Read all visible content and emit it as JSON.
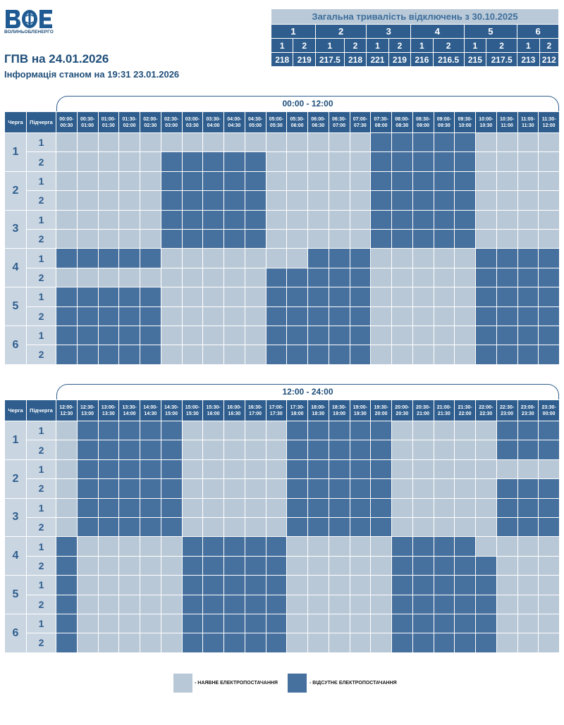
{
  "logo": {
    "mark_text": "ВОЕ",
    "brand": "ВОЛИНЬОБЛЕНЕРГО"
  },
  "title": "ГПВ на 24.01.2026",
  "subtitle": "Інформація станом на 19:31 23.01.2026",
  "summary": {
    "heading": "Загальна тривалість відключень з 30.10.2025",
    "queues": [
      "1",
      "2",
      "3",
      "4",
      "5",
      "6"
    ],
    "subqueues": [
      "1",
      "2",
      "1",
      "2",
      "1",
      "2",
      "1",
      "2",
      "1",
      "2",
      "1",
      "2"
    ],
    "values": [
      "218",
      "219",
      "217.5",
      "218",
      "221",
      "219",
      "216",
      "216.5",
      "215",
      "217.5",
      "213",
      "212"
    ]
  },
  "header_labels": {
    "queue": "Черга",
    "subqueue": "Підчерга"
  },
  "queue_labels": [
    "1",
    "2",
    "3",
    "4",
    "5",
    "6"
  ],
  "subqueue_labels": [
    "1",
    "2"
  ],
  "blocks": [
    {
      "title": "00:00 - 12:00",
      "slots": [
        [
          "00:00-",
          "00:30"
        ],
        [
          "00:30-",
          "01:00"
        ],
        [
          "01:00-",
          "01:30"
        ],
        [
          "01:30-",
          "02:00"
        ],
        [
          "02:00-",
          "02:30"
        ],
        [
          "02:30-",
          "03:00"
        ],
        [
          "03:00-",
          "03:30"
        ],
        [
          "03:30-",
          "04:00"
        ],
        [
          "04:00-",
          "04:30"
        ],
        [
          "04:30-",
          "05:00"
        ],
        [
          "05:00-",
          "05:30"
        ],
        [
          "05:30-",
          "06:00"
        ],
        [
          "06:00-",
          "06:30"
        ],
        [
          "06:30-",
          "07:00"
        ],
        [
          "07:00-",
          "07:30"
        ],
        [
          "07:30-",
          "08:00"
        ],
        [
          "08:00-",
          "08:30"
        ],
        [
          "08:30-",
          "09:00"
        ],
        [
          "09:00-",
          "09:30"
        ],
        [
          "09:30-",
          "10:00"
        ],
        [
          "10:00-",
          "10:30"
        ],
        [
          "10:30-",
          "11:00"
        ],
        [
          "11:00-",
          "11:30"
        ],
        [
          "11:30-",
          "12:00"
        ]
      ],
      "rows": [
        "000000000000000111110000",
        "000001111100000111110000",
        "000001111100000111110000",
        "000001111100000111110000",
        "000001111100000111110000",
        "000001111100000111110000",
        "111110000000111000001111",
        "000000000011111000001111",
        "111110000011111000001111",
        "111110000011111000001111",
        "111110000011111000001111",
        "111110000011111000001111"
      ]
    },
    {
      "title": "12:00 - 24:00",
      "slots": [
        [
          "12:00-",
          "12:30"
        ],
        [
          "12:30-",
          "13:00"
        ],
        [
          "13:00-",
          "13:30"
        ],
        [
          "13:30-",
          "14:00"
        ],
        [
          "14:00-",
          "14:30"
        ],
        [
          "14:30-",
          "15:00"
        ],
        [
          "15:00-",
          "15:30"
        ],
        [
          "15:30-",
          "16:00"
        ],
        [
          "16:00-",
          "16:30"
        ],
        [
          "16:30-",
          "17:00"
        ],
        [
          "17:00-",
          "17:30"
        ],
        [
          "17:30-",
          "18:00"
        ],
        [
          "18:00-",
          "18:30"
        ],
        [
          "18:30-",
          "19:00"
        ],
        [
          "19:00-",
          "19:30"
        ],
        [
          "19:30-",
          "20:00"
        ],
        [
          "20:00-",
          "20:30"
        ],
        [
          "20:30-",
          "21:00"
        ],
        [
          "21:00-",
          "21:30"
        ],
        [
          "21:30-",
          "22:00"
        ],
        [
          "22:00-",
          "22:30"
        ],
        [
          "22:30-",
          "23:00"
        ],
        [
          "23:00-",
          "23:30"
        ],
        [
          "23:30-",
          "00:00"
        ]
      ],
      "rows": [
        "011111000001111100000111",
        "011111000001111100000111",
        "011111000001111100000000",
        "011111000001111100000111",
        "011111000001111100000111",
        "011111000001111100000111",
        "100000111110000011110000",
        "100000111110000011111000",
        "100000111110000011111000",
        "100000111110000011111000",
        "100000111110000011111000",
        "100000111110000011111000"
      ]
    }
  ],
  "legend": {
    "available": "- НАЯВНЕ ЕЛЕКТРОПОСТАЧАННЯ",
    "absent": "- ВІДСУТНЄ ЕЛЕКТРОПОСТАЧАННЯ"
  },
  "colors": {
    "power_on": "#b9c8d7",
    "power_off": "#46709e",
    "header": "#2f5e8e",
    "accent_text": "#1f4e7a"
  }
}
